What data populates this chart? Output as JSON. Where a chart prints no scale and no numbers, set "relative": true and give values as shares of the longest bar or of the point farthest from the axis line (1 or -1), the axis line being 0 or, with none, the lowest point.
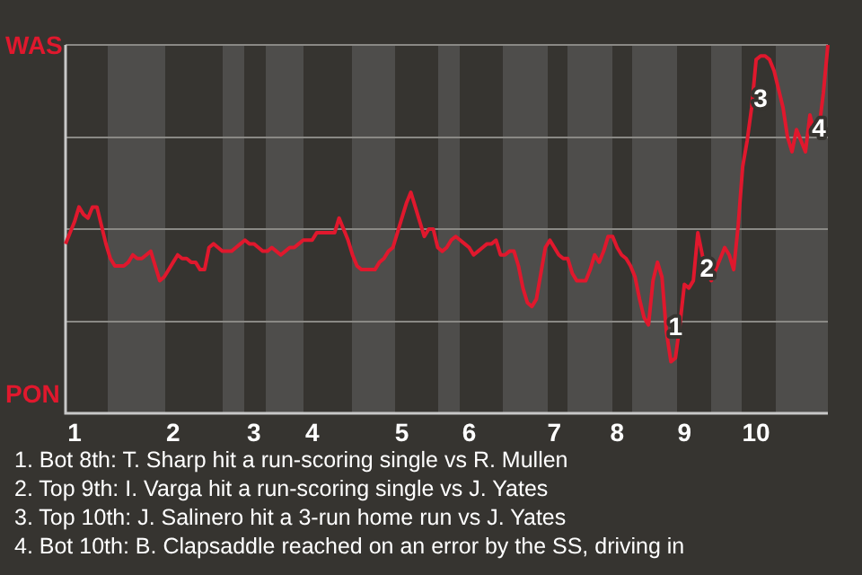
{
  "chart_data": {
    "type": "line",
    "relative": true,
    "categories": [
      null,
      null,
      "1",
      null,
      null,
      null,
      null,
      null,
      null,
      null,
      null,
      null,
      null,
      null,
      null,
      null,
      null,
      null,
      null,
      null,
      null,
      null,
      null,
      null,
      "2",
      null,
      null,
      null,
      null,
      null,
      null,
      null,
      null,
      null,
      null,
      null,
      null,
      null,
      null,
      null,
      null,
      null,
      "3",
      null,
      null,
      null,
      null,
      null,
      null,
      null,
      null,
      null,
      null,
      null,
      null,
      "4",
      null,
      null,
      null,
      null,
      null,
      null,
      null,
      null,
      null,
      null,
      null,
      null,
      null,
      null,
      null,
      null,
      null,
      null,
      null,
      "5",
      null,
      null,
      null,
      null,
      null,
      null,
      null,
      null,
      null,
      null,
      null,
      null,
      null,
      null,
      "6",
      null,
      null,
      null,
      null,
      null,
      null,
      null,
      null,
      null,
      null,
      null,
      null,
      null,
      null,
      null,
      null,
      null,
      null,
      "7",
      null,
      null,
      null,
      null,
      null,
      null,
      null,
      null,
      null,
      null,
      null,
      null,
      null,
      "8",
      null,
      null,
      null,
      null,
      null,
      null,
      null,
      null,
      null,
      null,
      null,
      null,
      null,
      null,
      "9",
      null,
      null,
      null,
      null,
      null,
      null,
      null,
      null,
      null,
      null,
      null,
      null,
      null,
      null,
      null,
      "10",
      null,
      null,
      null,
      null,
      null,
      null,
      null,
      null,
      null,
      null,
      null,
      null,
      null,
      null,
      null,
      null
    ],
    "grid": "y",
    "legend": false,
    "marker": "none",
    "line_style": "solid",
    "series": [
      {
        "color": "#e0182d",
        "values": [
          0.46,
          0.49,
          0.52,
          0.56,
          0.54,
          0.53,
          0.56,
          0.56,
          0.51,
          0.46,
          0.42,
          0.4,
          0.4,
          0.4,
          0.41,
          0.43,
          0.42,
          0.42,
          0.43,
          0.44,
          0.4,
          0.36,
          0.37,
          0.39,
          0.41,
          0.43,
          0.42,
          0.42,
          0.41,
          0.41,
          0.39,
          0.39,
          0.45,
          0.46,
          0.45,
          0.44,
          0.44,
          0.44,
          0.45,
          0.46,
          0.47,
          0.46,
          0.46,
          0.45,
          0.44,
          0.44,
          0.45,
          0.44,
          0.43,
          0.44,
          0.45,
          0.45,
          0.46,
          0.47,
          0.47,
          0.47,
          0.49,
          0.49,
          0.49,
          0.49,
          0.49,
          0.53,
          0.5,
          0.47,
          0.43,
          0.4,
          0.39,
          0.39,
          0.39,
          0.39,
          0.41,
          0.42,
          0.44,
          0.45,
          0.49,
          0.53,
          0.57,
          0.6,
          0.56,
          0.52,
          0.48,
          0.5,
          0.5,
          0.45,
          0.44,
          0.45,
          0.47,
          0.48,
          0.47,
          0.46,
          0.45,
          0.43,
          0.44,
          0.45,
          0.46,
          0.46,
          0.47,
          0.43,
          0.43,
          0.44,
          0.44,
          0.4,
          0.34,
          0.3,
          0.29,
          0.31,
          0.38,
          0.45,
          0.47,
          0.45,
          0.43,
          0.42,
          0.42,
          0.38,
          0.36,
          0.36,
          0.36,
          0.39,
          0.43,
          0.41,
          0.44,
          0.48,
          0.48,
          0.45,
          0.43,
          0.42,
          0.4,
          0.37,
          0.31,
          0.26,
          0.24,
          0.36,
          0.41,
          0.37,
          0.22,
          0.14,
          0.15,
          0.24,
          0.35,
          0.34,
          0.36,
          0.49,
          0.43,
          0.38,
          0.36,
          0.39,
          0.42,
          0.45,
          0.43,
          0.39,
          0.51,
          0.67,
          0.74,
          0.83,
          0.96,
          0.97,
          0.97,
          0.96,
          0.93,
          0.88,
          0.83,
          0.75,
          0.71,
          0.77,
          0.74,
          0.71,
          0.81,
          0.76,
          0.77,
          0.87,
          1
        ]
      }
    ],
    "annotations": [
      "WAS",
      "PON",
      {
        "text": "1",
        "y": 0.23
      },
      {
        "text": "2",
        "y": 0.39
      },
      {
        "text": "3",
        "y": 0.85
      },
      {
        "text": "4",
        "y": 0.77
      },
      "1. Bot 8th: T. Sharp hit a run-scoring single vs R. Mullen",
      "2. Top 9th: I. Varga hit a run-scoring single vs J. Yates",
      "3. Top 10th: J. Salinero hit a 3-run home run vs J. Yates",
      "4. Bot 10th: B. Clapsaddle reached on an error by the SS, driving in"
    ]
  }
}
